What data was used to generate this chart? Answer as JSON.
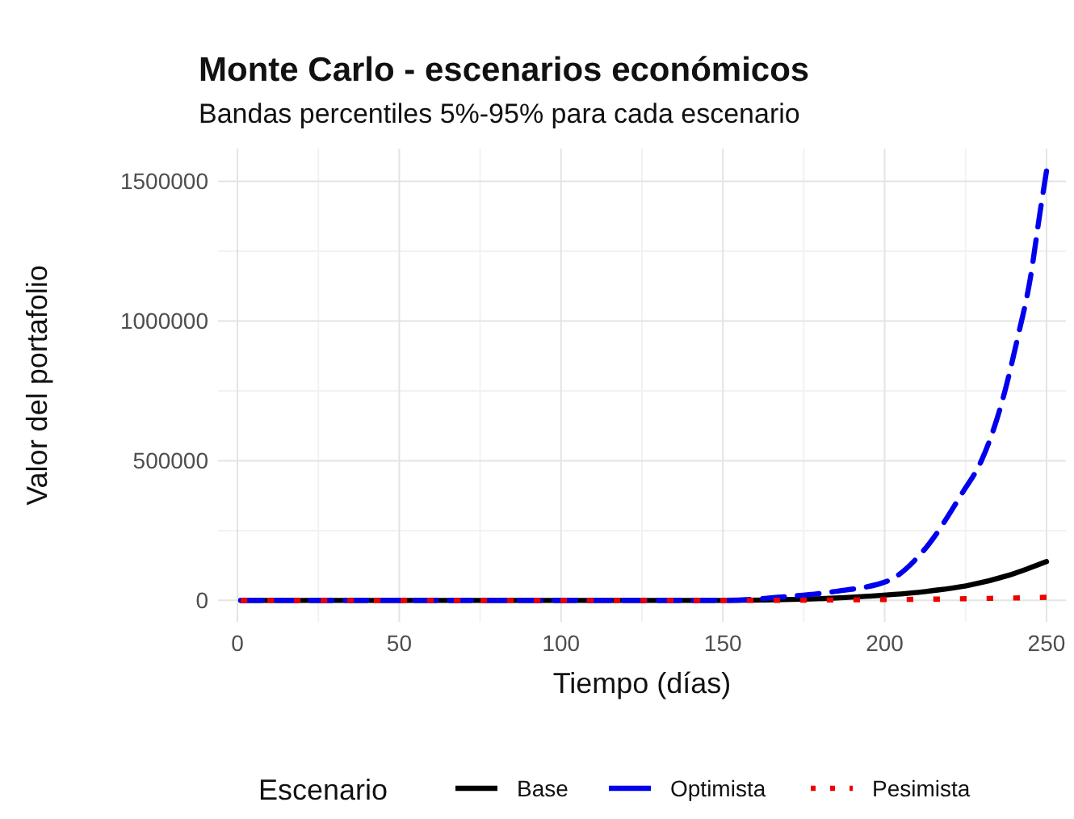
{
  "chart_data": {
    "type": "line",
    "title": "Monte Carlo - escenarios económicos",
    "subtitle": "Bandas percentiles 5%-95% para cada escenario",
    "xlabel": "Tiempo (días)",
    "ylabel": "Valor del portafolio",
    "legend_title": "Escenario",
    "legend": "bottom",
    "grid": true,
    "xlim": [
      -6,
      256
    ],
    "xticks": [
      0,
      50,
      100,
      150,
      200,
      250
    ],
    "ylim": [
      -77000,
      1617000
    ],
    "yticks": [
      0,
      500000,
      1000000,
      1500000
    ],
    "series": [
      {
        "name": "Base",
        "color": "#000000",
        "line_style": "solid",
        "x": [
          1,
          50,
          100,
          150,
          177,
          195,
          212,
          226,
          238,
          250
        ],
        "values": [
          0,
          0,
          0,
          0,
          5000,
          15000,
          31000,
          54000,
          89000,
          139000
        ]
      },
      {
        "name": "Optimista",
        "color": "#0000ee",
        "line_style": "dashed",
        "x": [
          1,
          50,
          100,
          150,
          168,
          184,
          201,
          212,
          224,
          230,
          236,
          241,
          245,
          248,
          250
        ],
        "values": [
          0,
          0,
          0,
          0,
          12000,
          31000,
          70000,
          178000,
          385000,
          503000,
          700000,
          936000,
          1153000,
          1389000,
          1537000
        ]
      },
      {
        "name": "Pesimista",
        "color": "#ee0000",
        "line_style": "dotted",
        "x": [
          1,
          50,
          100,
          150,
          200,
          225,
          250
        ],
        "values": [
          0,
          0,
          0,
          0,
          3000,
          6000,
          11000
        ]
      }
    ]
  }
}
